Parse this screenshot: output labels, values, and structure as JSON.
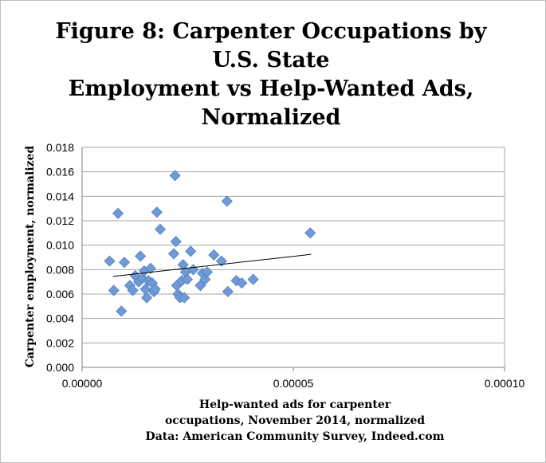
{
  "chart_data": {
    "type": "scatter",
    "title_lines": [
      "Figure 8: Carpenter Occupations by",
      "U.S. State",
      "Employment vs Help-Wanted Ads,",
      "Normalized"
    ],
    "ylabel": "Carpenter employment, normalized",
    "xlabel_lines": [
      "Help-wanted ads for carpenter",
      "occupations, November 2014, normalized",
      "Data: American Community Survey, Indeed.com"
    ],
    "xlim": [
      0,
      0.0001
    ],
    "ylim": [
      0,
      0.018
    ],
    "x_ticks": [
      "0.00000",
      "0.00005",
      "0.00010"
    ],
    "y_ticks": [
      "0.000",
      "0.002",
      "0.004",
      "0.006",
      "0.008",
      "0.010",
      "0.012",
      "0.014",
      "0.016",
      "0.018"
    ],
    "grid": "horizontal",
    "marker_color": "#6f9ad6",
    "trendline": {
      "x": [
        7.3e-06,
        5.42e-05
      ],
      "y": [
        0.00744,
        0.00925
      ]
    },
    "points": [
      {
        "x": 6.5e-06,
        "y": 0.0087
      },
      {
        "x": 7.5e-06,
        "y": 0.0063
      },
      {
        "x": 8.5e-06,
        "y": 0.0126
      },
      {
        "x": 9.3e-06,
        "y": 0.0046
      },
      {
        "x": 1e-05,
        "y": 0.0086
      },
      {
        "x": 1.13e-05,
        "y": 0.0067
      },
      {
        "x": 1.2e-05,
        "y": 0.0063
      },
      {
        "x": 1.26e-05,
        "y": 0.0075
      },
      {
        "x": 1.34e-05,
        "y": 0.007
      },
      {
        "x": 1.38e-05,
        "y": 0.0091
      },
      {
        "x": 1.43e-05,
        "y": 0.0073
      },
      {
        "x": 1.47e-05,
        "y": 0.0079
      },
      {
        "x": 1.5e-05,
        "y": 0.0064
      },
      {
        "x": 1.53e-05,
        "y": 0.0057
      },
      {
        "x": 1.57e-05,
        "y": 0.0071
      },
      {
        "x": 1.62e-05,
        "y": 0.0081
      },
      {
        "x": 1.66e-05,
        "y": 0.0069
      },
      {
        "x": 1.7e-05,
        "y": 0.0062
      },
      {
        "x": 1.73e-05,
        "y": 0.0064
      },
      {
        "x": 1.77e-05,
        "y": 0.0127
      },
      {
        "x": 1.85e-05,
        "y": 0.0113
      },
      {
        "x": 2.17e-05,
        "y": 0.0093
      },
      {
        "x": 2.2e-05,
        "y": 0.0157
      },
      {
        "x": 2.22e-05,
        "y": 0.0103
      },
      {
        "x": 2.24e-05,
        "y": 0.0067
      },
      {
        "x": 2.27e-05,
        "y": 0.006
      },
      {
        "x": 2.32e-05,
        "y": 0.0057
      },
      {
        "x": 2.36e-05,
        "y": 0.0071
      },
      {
        "x": 2.39e-05,
        "y": 0.0084
      },
      {
        "x": 2.42e-05,
        "y": 0.0057
      },
      {
        "x": 2.45e-05,
        "y": 0.0078
      },
      {
        "x": 2.49e-05,
        "y": 0.0072
      },
      {
        "x": 2.57e-05,
        "y": 0.0095
      },
      {
        "x": 2.63e-05,
        "y": 0.008
      },
      {
        "x": 2.8e-05,
        "y": 0.0067
      },
      {
        "x": 2.85e-05,
        "y": 0.0077
      },
      {
        "x": 2.91e-05,
        "y": 0.0072
      },
      {
        "x": 2.96e-05,
        "y": 0.0078
      },
      {
        "x": 3.12e-05,
        "y": 0.0092
      },
      {
        "x": 3.3e-05,
        "y": 0.0087
      },
      {
        "x": 3.43e-05,
        "y": 0.0136
      },
      {
        "x": 3.45e-05,
        "y": 0.0062
      },
      {
        "x": 3.65e-05,
        "y": 0.0071
      },
      {
        "x": 3.78e-05,
        "y": 0.0069
      },
      {
        "x": 4.05e-05,
        "y": 0.0072
      },
      {
        "x": 5.4e-05,
        "y": 0.011
      }
    ]
  }
}
